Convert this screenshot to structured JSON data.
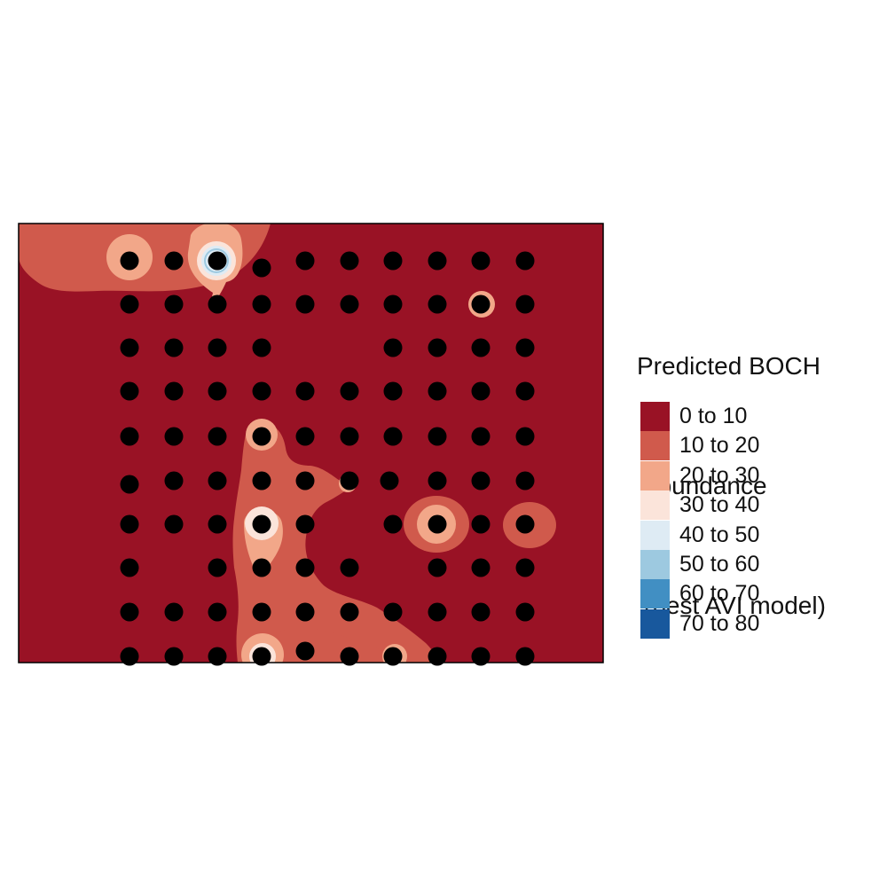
{
  "legend": {
    "title_line1": "Predicted BOCH",
    "title_line2": "abundance",
    "title_line3": "(best AVI model)",
    "classes": [
      {
        "label": "0 to 10",
        "color": "#991225"
      },
      {
        "label": "10 to 20",
        "color": "#d05a4c"
      },
      {
        "label": "20 to 30",
        "color": "#f2a789"
      },
      {
        "label": "30 to 40",
        "color": "#fbe4da"
      },
      {
        "label": "40 to 50",
        "color": "#deebf4"
      },
      {
        "label": "50 to 60",
        "color": "#9dc9e0"
      },
      {
        "label": "60 to 70",
        "color": "#418fc3"
      },
      {
        "label": "70 to 80",
        "color": "#18589d"
      }
    ]
  },
  "map": {
    "background_class": "0 to 10",
    "survey_point_color": "#000000"
  }
}
